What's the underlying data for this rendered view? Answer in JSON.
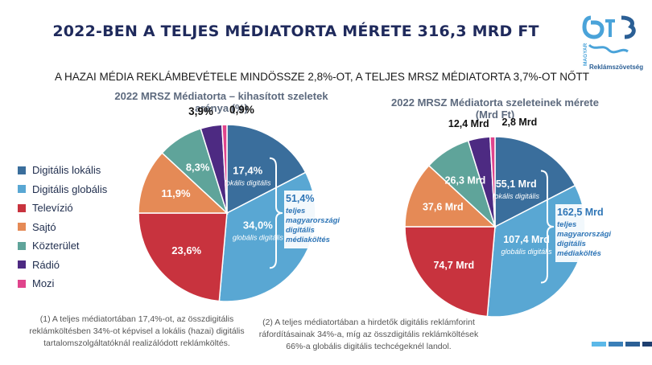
{
  "title": "2022-BEN A TELJES MÉDIATORTA MÉRETE 316,3 MRD FT",
  "subtitle": "A HAZAI MÉDIA REKLÁMBEVÉTELE MINDÖSSZE 2,8%-OT, A TELJES MRSZ MÉDIATORTA 3,7%-OT NŐTT",
  "logo": {
    "vertical_text": "MAGYAR",
    "text": "Reklámszövetség"
  },
  "colors": {
    "digitalis_lokalis": "#3a6e9c",
    "digitalis_globalis": "#59a7d3",
    "televizio": "#c8333e",
    "sajto": "#e58a56",
    "kozterulet": "#5fa49a",
    "radio": "#4d2a82",
    "mozi": "#e0448c"
  },
  "legend": [
    "Digitális lokális",
    "Digitális globális",
    "Televízió",
    "Sajtó",
    "Közterület",
    "Rádió",
    "Mozi"
  ],
  "chart_data": [
    {
      "type": "pie",
      "title_line1": "2022 MRSZ Médiatorta – kihasított szeletek",
      "title_line2": "aránya (%)",
      "categories": [
        "Digitális lokális",
        "Digitális globális",
        "Televízió",
        "Sajtó",
        "Közterület",
        "Rádió",
        "Mozi"
      ],
      "values": [
        17.4,
        34.0,
        23.6,
        11.9,
        8.3,
        3.9,
        0.9
      ],
      "value_labels": [
        "17,4%",
        "34,0%",
        "23,6%",
        "11,9%",
        "8,3%",
        "3,9%",
        "0,9%"
      ],
      "sublabels": [
        "lokális digitális(1)",
        "globális digitális(2)"
      ],
      "bracket_value": "51,4%",
      "bracket_text": [
        "teljes",
        "magyarországi",
        "digitális",
        "médiaköltés"
      ]
    },
    {
      "type": "pie",
      "title_line1": "2022 MRSZ Médiatorta szeleteinek mérete",
      "title_line2": "(Mrd Ft)",
      "categories": [
        "Digitális lokális",
        "Digitális globális",
        "Televízió",
        "Sajtó",
        "Közterület",
        "Rádió",
        "Mozi"
      ],
      "values": [
        55.1,
        107.4,
        74.7,
        37.6,
        26.3,
        12.4,
        2.8
      ],
      "value_labels": [
        "55,1 Mrd",
        "107,4 Mrd",
        "74,7 Mrd",
        "37,6 Mrd",
        "26,3 Mrd",
        "12,4 Mrd",
        "2,8 Mrd"
      ],
      "sublabels": [
        "lokális digitális",
        "globális digitális"
      ],
      "bracket_value": "162,5 Mrd",
      "bracket_text": [
        "teljes",
        "magyarországi",
        "digitális",
        "médiaköltés"
      ]
    }
  ],
  "footnotes": {
    "left": [
      "(1) A teljes médiatortában 17,4%-ot, az összdigitális",
      "reklámköltésben 34%-ot  képvisel a lokális (hazai) digitális",
      "tartalomszolgáltatóknál realizálódott reklámköltés."
    ],
    "right": [
      "(2) A teljes médiatortában a hirdetők digitális reklámforint",
      "ráfordításainak 34%-a, míg az összdigitális reklámköltések",
      "66%-a globális digitális techcégeknél landol."
    ]
  },
  "corner_bars": [
    "#5bb8e8",
    "#3a7fb8",
    "#2b5f95",
    "#1f3f70"
  ]
}
